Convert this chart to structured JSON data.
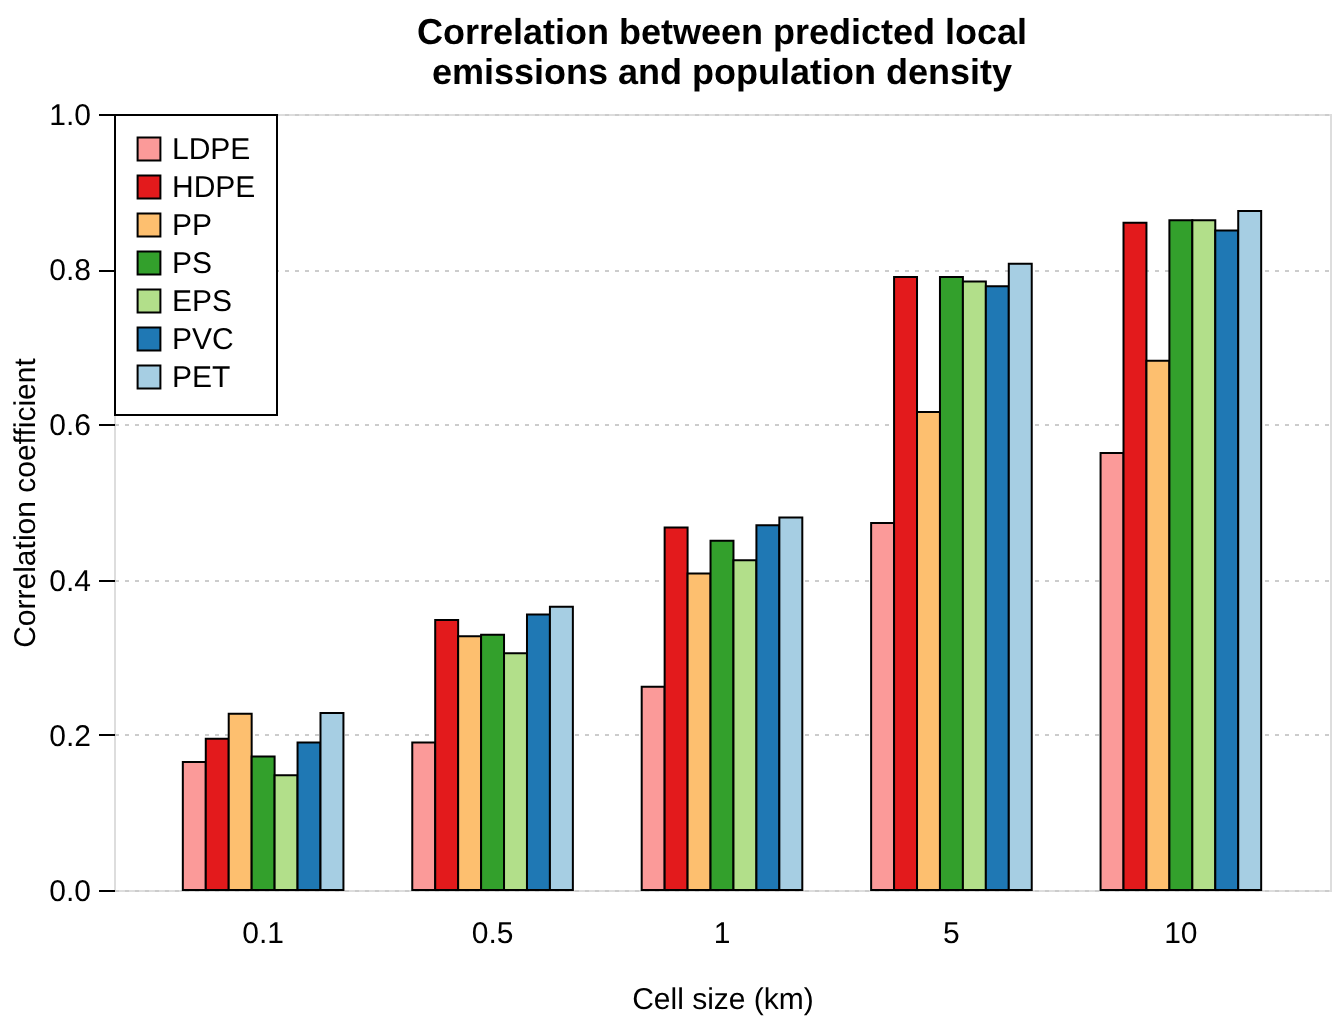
{
  "chart_data": {
    "type": "bar",
    "title": "Correlation between predicted local emissions and population density",
    "xlabel": "Cell size (km)",
    "ylabel": "Correlation coefficient",
    "categories": [
      "0.1",
      "0.5",
      "1",
      "5",
      "10"
    ],
    "series": [
      {
        "name": "LDPE",
        "color": "#fb9a99",
        "values": [
          0.165,
          0.19,
          0.262,
          0.473,
          0.563
        ]
      },
      {
        "name": "HDPE",
        "color": "#e31a1c",
        "values": [
          0.195,
          0.348,
          0.467,
          0.79,
          0.86
        ]
      },
      {
        "name": "PP",
        "color": "#fdbf6f",
        "values": [
          0.227,
          0.327,
          0.408,
          0.616,
          0.682
        ]
      },
      {
        "name": "PS",
        "color": "#33a02c",
        "values": [
          0.172,
          0.329,
          0.45,
          0.79,
          0.863
        ]
      },
      {
        "name": "EPS",
        "color": "#b2df8a",
        "values": [
          0.148,
          0.305,
          0.425,
          0.784,
          0.863
        ]
      },
      {
        "name": "PVC",
        "color": "#1f78b4",
        "values": [
          0.19,
          0.355,
          0.47,
          0.778,
          0.85
        ]
      },
      {
        "name": "PET",
        "color": "#a6cee3",
        "values": [
          0.228,
          0.365,
          0.48,
          0.807,
          0.875
        ]
      }
    ],
    "ylim": [
      0,
      1
    ],
    "yticks": [
      {
        "value": 0,
        "label": "0.0"
      },
      0.2,
      0.4,
      0.6,
      0.8,
      {
        "value": 1,
        "label": "1.0"
      }
    ],
    "grid": "y",
    "legend": "top left"
  }
}
